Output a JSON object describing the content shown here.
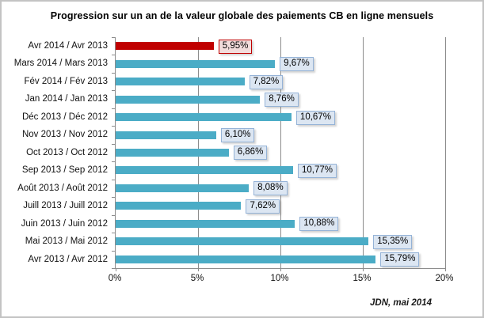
{
  "title": "Progression sur un an de la valeur globale des paiements CB en ligne mensuels",
  "source": "JDN, mai 2014",
  "colors": {
    "bar": "#4bacc6",
    "highlight_bar": "#c00000",
    "value_box_bg": "#dce6f2",
    "value_box_border": "#95b3d7",
    "highlight_box_bg": "#f2dcdb",
    "highlight_box_border": "#c00000",
    "grid": "#8c8c8c",
    "frame_border": "#c3c3c3"
  },
  "chart_data": {
    "type": "bar",
    "orientation": "horizontal",
    "title": "Progression sur un an de la valeur globale des paiements CB en ligne mensuels",
    "categories": [
      "Avr 2014 / Avr 2013",
      "Mars 2014 / Mars 2013",
      "Fév 2014 / Fév 2013",
      "Jan 2014 / Jan 2013",
      "Déc 2013 / Déc 2012",
      "Nov 2013 / Nov 2012",
      "Oct 2013 / Oct 2012",
      "Sep 2013 / Sep 2012",
      "Août 2013 / Août 2012",
      "Juill 2013 / Juill 2012",
      "Juin 2013 / Juin 2012",
      "Mai 2013 / Mai 2012",
      "Avr 2013 / Avr 2012"
    ],
    "values": [
      5.95,
      9.67,
      7.82,
      8.76,
      10.67,
      6.1,
      6.86,
      10.77,
      8.08,
      7.62,
      10.88,
      15.35,
      15.79
    ],
    "value_labels": [
      "5,95%",
      "9,67%",
      "7,82%",
      "8,76%",
      "10,67%",
      "6,10%",
      "6,86%",
      "10,77%",
      "8,08%",
      "7,62%",
      "10,88%",
      "15,35%",
      "15,79%"
    ],
    "highlight_index": 0,
    "xlim": [
      0,
      20
    ],
    "x_tick_labels": [
      "0%",
      "5%",
      "10%",
      "15%",
      "20%"
    ],
    "grid": "vertical",
    "legend": "none",
    "annotation": "JDN, mai 2014"
  }
}
